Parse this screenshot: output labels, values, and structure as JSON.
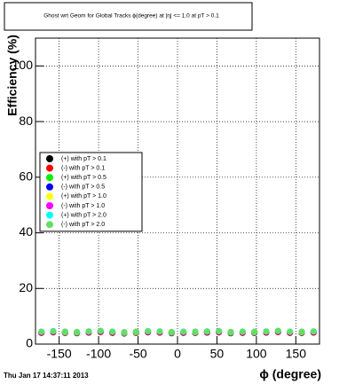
{
  "chart_data": {
    "type": "scatter",
    "title": "Ghost wrt Geom for Global Tracks ϕ(degree) at |η| <= 1.0 at pT > 0.1",
    "x_label": "ϕ (degree)",
    "y_label": "Efficiency (%)",
    "footer": "Thu Jan 17 14:37:11 2013",
    "x": [
      -172.5,
      -157.5,
      -142.5,
      -127.5,
      -112.5,
      -97.5,
      -82.5,
      -67.5,
      -52.5,
      -37.5,
      -22.5,
      -7.5,
      7.5,
      22.5,
      37.5,
      52.5,
      67.5,
      82.5,
      97.5,
      112.5,
      127.5,
      142.5,
      157.5,
      172.5
    ],
    "series": [
      {
        "name": "(+) with pT > 0.1",
        "color": "#000000",
        "values": [
          4.1,
          4.3,
          4.0,
          3.9,
          4.2,
          4.4,
          4.1,
          3.8,
          4.0,
          4.3,
          4.2,
          3.9,
          4.1,
          4.0,
          4.2,
          4.3,
          3.9,
          4.1,
          4.0,
          4.2,
          4.4,
          4.1,
          4.0,
          4.2
        ]
      },
      {
        "name": "(-) with pT > 0.1",
        "color": "#ff0000",
        "values": [
          4.0,
          4.2,
          4.1,
          4.0,
          4.1,
          4.3,
          4.0,
          3.9,
          4.1,
          4.2,
          4.1,
          4.0,
          4.0,
          4.1,
          4.1,
          4.2,
          4.0,
          4.0,
          4.1,
          4.1,
          4.3,
          4.0,
          4.1,
          4.1
        ]
      },
      {
        "name": "(+) with pT > 0.5",
        "color": "#00ee00",
        "values": [
          4.3,
          4.5,
          4.2,
          4.1,
          4.4,
          4.6,
          4.3,
          4.0,
          4.2,
          4.5,
          4.4,
          4.1,
          4.3,
          4.2,
          4.4,
          4.5,
          4.1,
          4.3,
          4.2,
          4.4,
          4.6,
          4.3,
          4.2,
          4.4
        ]
      },
      {
        "name": "(-) with pT > 0.5",
        "color": "#0000ff",
        "values": [
          4.2,
          4.4,
          4.3,
          4.2,
          4.3,
          4.5,
          4.2,
          4.1,
          4.3,
          4.4,
          4.3,
          4.2,
          4.2,
          4.3,
          4.3,
          4.4,
          4.2,
          4.2,
          4.3,
          4.3,
          4.5,
          4.2,
          4.3,
          4.3
        ]
      },
      {
        "name": "(+) with pT > 1.0",
        "color": "#ffff00",
        "values": [
          4.4,
          4.6,
          4.3,
          4.2,
          4.5,
          4.7,
          4.4,
          4.1,
          4.3,
          4.6,
          4.5,
          4.2,
          4.4,
          4.3,
          4.5,
          4.6,
          4.2,
          4.4,
          4.3,
          4.5,
          4.7,
          4.4,
          4.3,
          4.5
        ]
      },
      {
        "name": "(-) with pT > 1.0",
        "color": "#ff00ff",
        "values": [
          4.3,
          4.5,
          4.4,
          4.3,
          4.4,
          4.6,
          4.3,
          4.2,
          4.4,
          4.5,
          4.4,
          4.3,
          4.3,
          4.4,
          4.4,
          4.5,
          4.3,
          4.3,
          4.4,
          4.4,
          4.6,
          4.3,
          4.4,
          4.4
        ]
      },
      {
        "name": "(+) with pT > 2.0",
        "color": "#00ffff",
        "values": [
          4.5,
          4.7,
          4.4,
          4.3,
          4.6,
          4.8,
          4.5,
          4.2,
          4.4,
          4.7,
          4.6,
          4.3,
          4.5,
          4.4,
          4.6,
          4.7,
          4.3,
          4.5,
          4.4,
          4.6,
          4.8,
          4.5,
          4.4,
          4.6
        ]
      },
      {
        "name": "(-) with pT > 2.0",
        "color": "#66dd66",
        "values": [
          4.4,
          4.6,
          4.5,
          4.4,
          4.5,
          4.7,
          4.4,
          4.3,
          4.5,
          4.6,
          4.5,
          4.4,
          4.4,
          4.5,
          4.5,
          4.6,
          4.4,
          4.4,
          4.5,
          4.5,
          4.7,
          4.4,
          4.5,
          4.5
        ]
      }
    ],
    "xlim": [
      -180,
      180
    ],
    "xticks": [
      -150,
      -100,
      -50,
      0,
      50,
      100,
      150
    ],
    "ylim": [
      0,
      110
    ],
    "yticks": [
      0,
      20,
      40,
      60,
      80,
      100
    ],
    "grid": true
  }
}
